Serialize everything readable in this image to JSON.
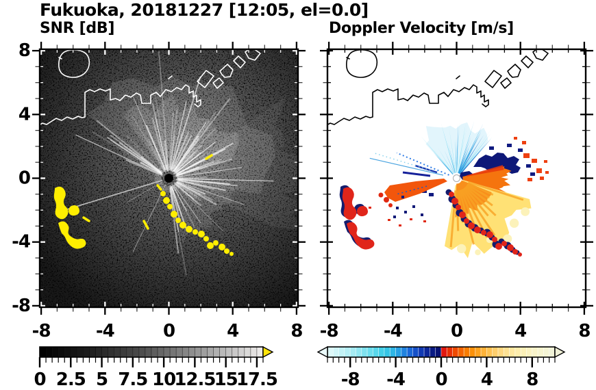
{
  "header": {
    "title": "Fukuoka, 20181227 [12:05, el=0.0]"
  },
  "panels": [
    {
      "label": "SNR [dB]",
      "show_y_labels": true,
      "axis": {
        "xlim": [
          -8.1,
          8.1
        ],
        "ylim": [
          -8.1,
          8.1
        ],
        "major_ticks": [
          -8,
          -4,
          0,
          4,
          8
        ],
        "minor_step": 1,
        "tick_labels": [
          "-8",
          "-4",
          "0",
          "4",
          "8"
        ]
      },
      "colorbar": {
        "units": "dB",
        "vmin": 0,
        "vmax": 18,
        "segment": 0.5,
        "tick_values": [
          0,
          2.5,
          5,
          7.5,
          10,
          12.5,
          15,
          17.5
        ],
        "tick_labels": [
          "0",
          "2.5",
          "5",
          "7.5",
          "10",
          "12.5",
          "15",
          "17.5"
        ],
        "stops": [
          [
            0,
            "#000000"
          ],
          [
            4,
            "#1d1d1d"
          ],
          [
            8,
            "#4a4a4a"
          ],
          [
            12,
            "#8a8a8a"
          ],
          [
            15,
            "#bdbdbd"
          ],
          [
            18,
            "#efedec"
          ]
        ],
        "left_arrow_color": null,
        "right_arrow_color": "#ffe40a",
        "segment_stroke": "rgba(0,0,0,0.45)"
      }
    },
    {
      "label": "Doppler Velocity [m/s]",
      "show_y_labels": false,
      "axis": {
        "xlim": [
          -8.1,
          8.1
        ],
        "ylim": [
          -8.1,
          8.1
        ],
        "major_ticks": [
          -8,
          -4,
          0,
          4,
          8
        ],
        "minor_step": 1,
        "tick_labels": [
          "-8",
          "-4",
          "0",
          "4",
          "8"
        ]
      },
      "colorbar": {
        "units": "m/s",
        "vmin": -10,
        "vmax": 10,
        "segment": 0.5,
        "tick_values": [
          -8,
          -4,
          0,
          4,
          8
        ],
        "tick_labels": [
          "-8",
          "-4",
          "0",
          "4",
          "8"
        ],
        "stops": [
          [
            -10,
            "#e4f9fa"
          ],
          [
            -8,
            "#aeedf4"
          ],
          [
            -6,
            "#63dbec"
          ],
          [
            -5,
            "#38cce6"
          ],
          [
            -4,
            "#2aaee6"
          ],
          [
            -3,
            "#1d74dd"
          ],
          [
            -2.5,
            "#175cd2"
          ],
          [
            -2,
            "#1244c0"
          ],
          [
            -1.5,
            "#0d2ea6"
          ],
          [
            -1,
            "#0a1e8c"
          ],
          [
            -0.2,
            "#071070"
          ],
          [
            0.2,
            "#e01410"
          ],
          [
            1,
            "#ec3c00"
          ],
          [
            2,
            "#f67300"
          ],
          [
            2.5,
            "#f98500"
          ],
          [
            3,
            "#fc9a12"
          ],
          [
            4,
            "#feba44"
          ],
          [
            5,
            "#fed478"
          ],
          [
            6,
            "#fee59a"
          ],
          [
            7,
            "#fcefb2"
          ],
          [
            8,
            "#f9f3c6"
          ],
          [
            9,
            "#f5f4d2"
          ],
          [
            10,
            "#f0f3da"
          ]
        ],
        "left_arrow_color": "#ebfbfc",
        "right_arrow_color": "#f1f2d8",
        "segment_stroke": "rgba(255,255,255,0.55)"
      }
    }
  ],
  "chart_data": [
    {
      "type": "heatmap",
      "panel_title": "SNR [dB]",
      "figure_title": "Fukuoka, 20181227 [12:05, el=0.0]",
      "xlim": [
        -8,
        8
      ],
      "ylim": [
        -8,
        8
      ],
      "x_ticks": [
        -8,
        -4,
        0,
        4,
        8
      ],
      "y_ticks": [
        8,
        4,
        0,
        -4,
        -8
      ],
      "minor_tick_step": 1,
      "radar_center_xy": [
        0,
        0
      ],
      "background": "black (below 0 dB / no echo)",
      "colorbar": {
        "range": [
          0,
          18
        ],
        "step": 0.5,
        "ticks": [
          0,
          2.5,
          5,
          7.5,
          10,
          12.5,
          15,
          17.5
        ],
        "scale": "black-to-white grayscale",
        "over_range": "yellow arrow"
      },
      "features": [
        {
          "name": "coastline",
          "color": "white",
          "desc": "Hakata Bay shoreline: island upper-left, wiggly south shore, angular harbor piers upper-right reaching top edge"
        },
        {
          "name": "radial-clutter-fan",
          "value_range_dB": [
            1,
            10
          ],
          "desc": "gray radial streaks emanating from radar at (0,0), brightest toward N through E and SE; dark wedges toward SW"
        },
        {
          "name": "strong-echo-arcs",
          "color": "yellow",
          "value": "> 18 dB",
          "desc": "arc cluster near (-6.5,-1.5)..(-5.5,-4.3) and blob chain from (0,-1) to (3.7,-4.7)"
        }
      ]
    },
    {
      "type": "heatmap",
      "panel_title": "Doppler Velocity [m/s]",
      "xlim": [
        -8,
        8
      ],
      "ylim": [
        -8,
        8
      ],
      "x_ticks": [
        -8,
        -4,
        0,
        4,
        8
      ],
      "y_ticks": [
        8,
        4,
        0,
        -4,
        -8
      ],
      "minor_tick_step": 1,
      "radar_center_xy": [
        0,
        0
      ],
      "background": "white (no data)",
      "colorbar": {
        "range": [
          -10,
          10
        ],
        "step": 0.5,
        "ticks": [
          -8,
          -4,
          0,
          4,
          8
        ],
        "scale": "pale-cyan to navy for negative; red to pale-yellow for positive",
        "under_range": "pale cyan arrow",
        "over_range": "pale yellow arrow"
      },
      "features": [
        {
          "name": "coastline",
          "color": "black",
          "desc": "same shoreline as SNR panel"
        },
        {
          "name": "approaching-fan",
          "values_mps": [
            -6,
            -1
          ],
          "desc": "cyan/blue streaked fan north of radar up to ~4 km"
        },
        {
          "name": "navy-patch",
          "values_mps": [
            -1,
            -0.5
          ],
          "desc": "dark navy jagged patch northeast of radar with red-orange blobs beyond"
        },
        {
          "name": "receding-fan",
          "values_mps": [
            1,
            6
          ],
          "desc": "orange core with yellow/pale-yellow fan south-southeast of radar"
        },
        {
          "name": "west-wedge",
          "values_mps": [
            1,
            2
          ],
          "desc": "narrow orange-red wedge pointing west-southwest, navy and red specks nearby"
        },
        {
          "name": "echo-arcs",
          "desc": "red arcs fringed with navy matching the SNR yellow arcs (west cluster and SE chain)"
        },
        {
          "name": "dotted-rays",
          "desc": "dotted blue rays toward WNW and SW of radar"
        }
      ]
    }
  ]
}
